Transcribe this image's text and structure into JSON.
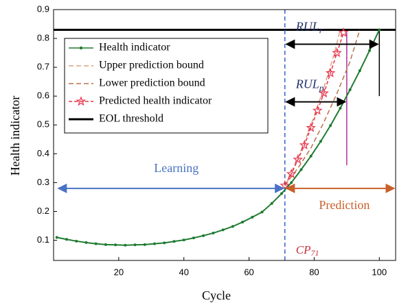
{
  "chart_data": {
    "type": "line",
    "xlabel": "Cycle",
    "ylabel": "Health indicator",
    "xlim": [
      0,
      105
    ],
    "ylim": [
      0.03,
      0.9
    ],
    "xticks": [
      20,
      40,
      60,
      80,
      100
    ],
    "yticks": [
      0.1,
      0.2,
      0.3,
      0.4,
      0.5,
      0.6,
      0.7,
      0.8,
      0.9
    ],
    "series": [
      {
        "name": "Health indicator",
        "color": "#1e7b30",
        "style": "dots",
        "x": [
          1,
          4,
          7,
          10,
          13,
          16,
          19,
          22,
          25,
          28,
          31,
          34,
          37,
          40,
          43,
          46,
          49,
          52,
          55,
          58,
          61,
          64,
          67,
          70,
          73,
          76,
          79,
          82,
          85,
          88,
          91,
          94,
          97,
          100
        ],
        "values": [
          0.11,
          0.103,
          0.097,
          0.092,
          0.088,
          0.085,
          0.084,
          0.083,
          0.084,
          0.085,
          0.088,
          0.091,
          0.096,
          0.101,
          0.108,
          0.116,
          0.125,
          0.136,
          0.148,
          0.163,
          0.18,
          0.198,
          0.228,
          0.262,
          0.3,
          0.345,
          0.392,
          0.443,
          0.498,
          0.558,
          0.622,
          0.688,
          0.758,
          0.83
        ]
      },
      {
        "name": "Upper prediction bound",
        "color": "#d9a27e",
        "style": "dashed",
        "x": [
          71,
          74,
          77,
          80,
          83,
          86,
          88
        ],
        "values": [
          0.29,
          0.36,
          0.44,
          0.53,
          0.63,
          0.74,
          0.83
        ]
      },
      {
        "name": "Lower prediction bound",
        "color": "#b8704a",
        "style": "dashed",
        "x": [
          71,
          75,
          79,
          83,
          87,
          91,
          94
        ],
        "values": [
          0.29,
          0.35,
          0.42,
          0.51,
          0.61,
          0.72,
          0.83
        ]
      },
      {
        "name": "Predicted health indicator",
        "color": "#e8324a",
        "style": "stars",
        "x": [
          71,
          73,
          75,
          77,
          79,
          81,
          83,
          85,
          87,
          89
        ],
        "values": [
          0.29,
          0.33,
          0.38,
          0.43,
          0.49,
          0.55,
          0.61,
          0.68,
          0.75,
          0.82
        ]
      }
    ],
    "threshold": {
      "name": "EOL threshold",
      "value": 0.83,
      "color": "#000000"
    },
    "change_point": {
      "x": 71,
      "label": "CP",
      "subscript": "71",
      "color": "#3a5fc8"
    },
    "markers": [
      {
        "x": 90,
        "y0": 0.36,
        "y1": 0.82,
        "color": "#b0309a"
      },
      {
        "x": 100,
        "y0": 0.6,
        "y1": 0.83,
        "color": "#000000"
      }
    ],
    "arrows": [
      {
        "label": "Learning",
        "from": 1,
        "to": 71,
        "y": 0.28,
        "color": "#4a72c4"
      },
      {
        "label": "Prediction",
        "from": 71,
        "to": 105,
        "y": 0.28,
        "color": "#c8602a"
      },
      {
        "label": "RUL",
        "subscript": "r",
        "from": 71,
        "to": 100,
        "y": 0.78,
        "color": "#000000"
      },
      {
        "label": "RUL",
        "subscript": "p",
        "from": 71,
        "to": 90,
        "y": 0.58,
        "color": "#000000"
      }
    ]
  }
}
